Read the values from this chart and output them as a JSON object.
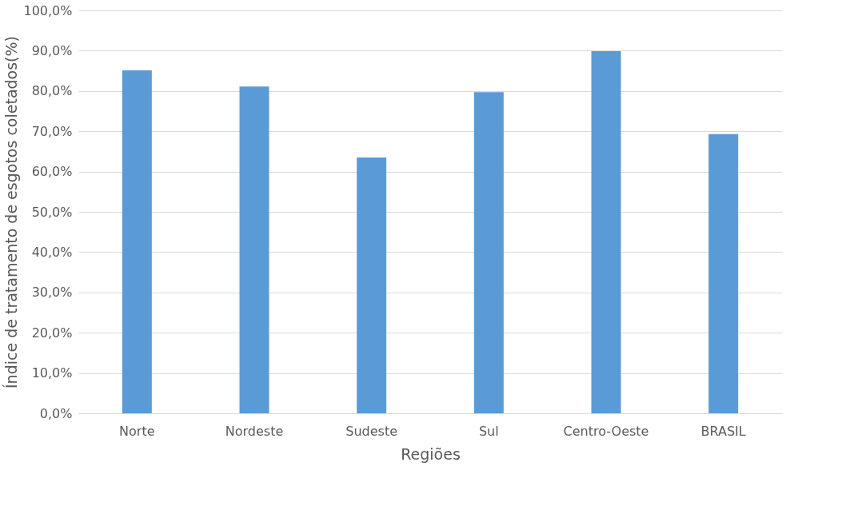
{
  "chart_data": {
    "type": "bar",
    "ylabel": "Índice de tratamento de esgotos coletados(%)",
    "xlabel": "Regiões",
    "categories": [
      "Norte",
      "Nordeste",
      "Sudeste",
      "Sul",
      "Centro-Oeste",
      "BRASIL"
    ],
    "values": [
      85.1,
      81.1,
      63.5,
      79.7,
      89.9,
      69.3
    ],
    "color": "#5b9bd5",
    "ylim": [
      0,
      100
    ],
    "yticks": [
      {
        "value": 0,
        "label": "0,0%"
      },
      {
        "value": 10,
        "label": "10,0%"
      },
      {
        "value": 20,
        "label": "20,0%"
      },
      {
        "value": 30,
        "label": "30,0%"
      },
      {
        "value": 40,
        "label": "40,0%"
      },
      {
        "value": 50,
        "label": "50,0%"
      },
      {
        "value": 60,
        "label": "60,0%"
      },
      {
        "value": 70,
        "label": "70,0%"
      },
      {
        "value": 80,
        "label": "80,0%"
      },
      {
        "value": 90,
        "label": "90,0%"
      },
      {
        "value": 100,
        "label": "100,0%"
      }
    ],
    "grid": "y"
  }
}
